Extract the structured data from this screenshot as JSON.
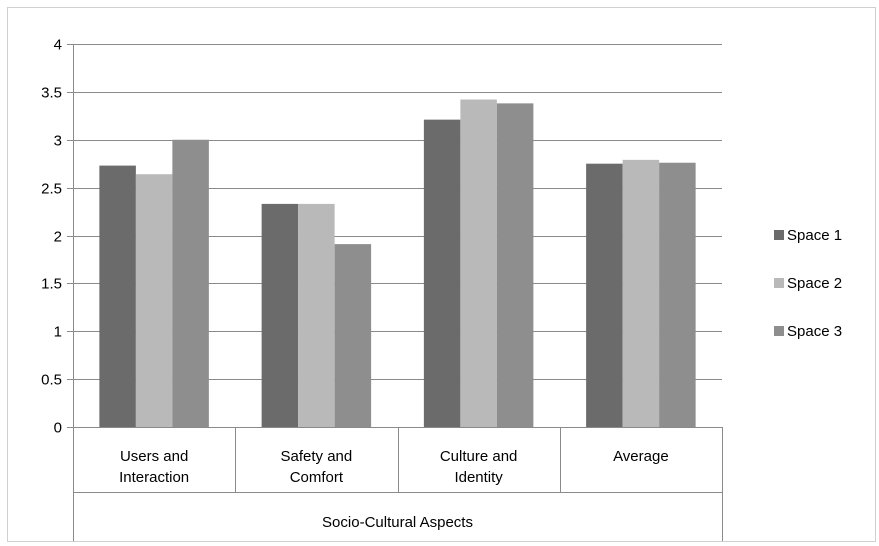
{
  "chart_data": {
    "type": "bar",
    "title": "",
    "xlabel": "",
    "ylabel": "",
    "group_label": "Socio-Cultural Aspects",
    "categories": [
      [
        "Users and",
        "Interaction"
      ],
      [
        "Safety and",
        "Comfort"
      ],
      [
        "Culture and",
        "Identity"
      ],
      [
        "Average"
      ]
    ],
    "series": [
      {
        "name": "Space 1",
        "color": "#6b6b6b",
        "values": [
          2.73,
          2.33,
          3.21,
          2.75
        ]
      },
      {
        "name": "Space 2",
        "color": "#b9b9b9",
        "values": [
          2.64,
          2.33,
          3.42,
          2.79
        ]
      },
      {
        "name": "Space 3",
        "color": "#8e8e8e",
        "values": [
          3.0,
          1.91,
          3.38,
          2.76
        ]
      }
    ],
    "ylim": [
      0,
      4
    ],
    "yticks": [
      "0",
      "0.5",
      "1",
      "1.5",
      "2",
      "2.5",
      "3",
      "3.5",
      "4"
    ],
    "grid": true,
    "legend_position": "right"
  }
}
